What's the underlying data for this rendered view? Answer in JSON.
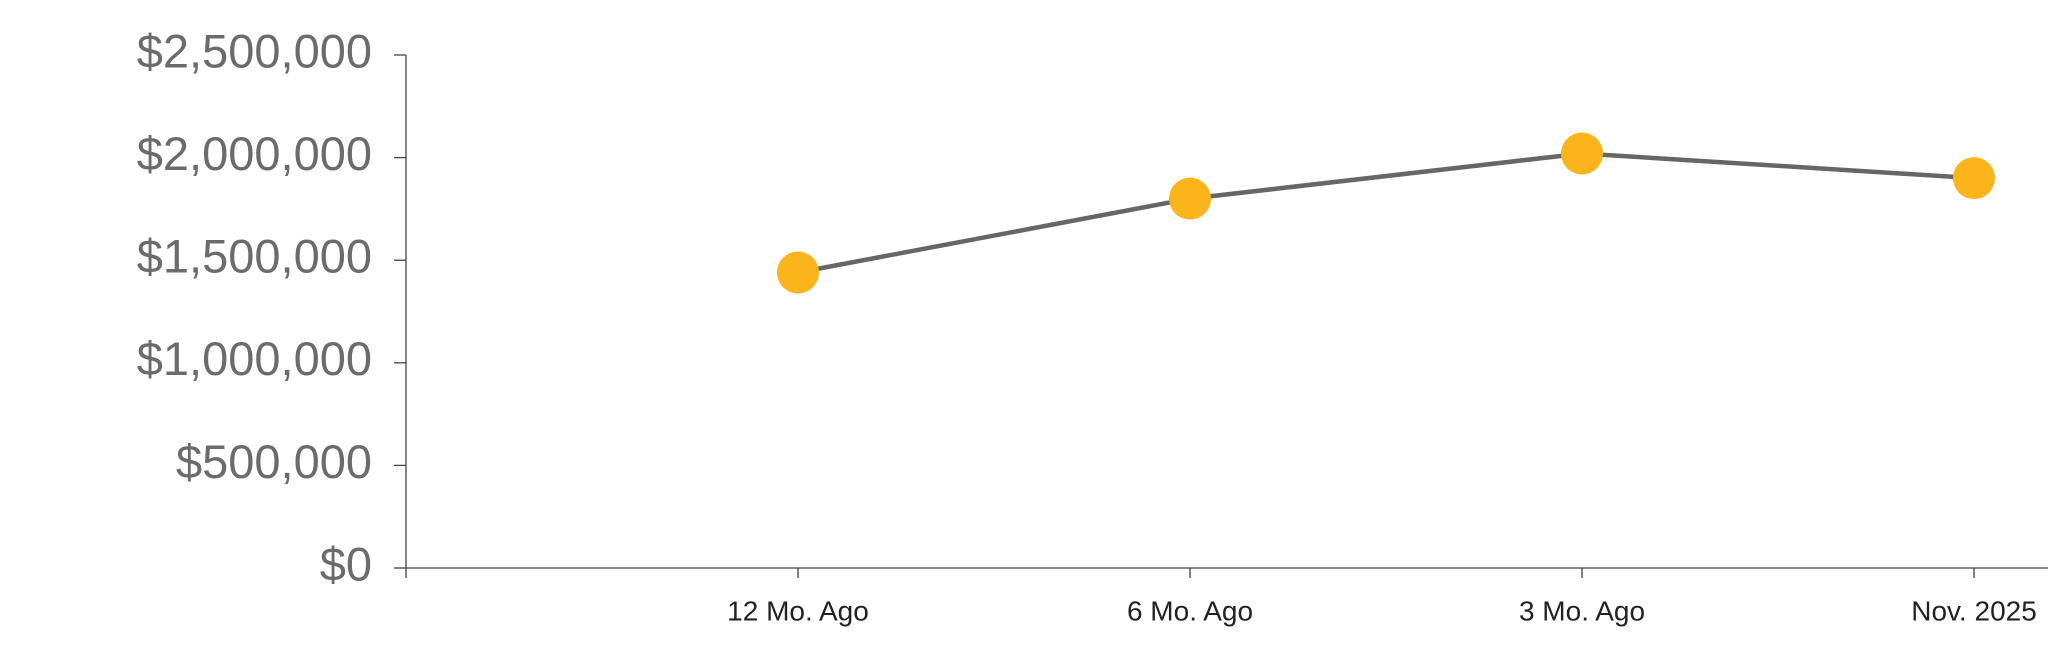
{
  "chart_data": {
    "type": "line",
    "categories": [
      null,
      "12 Mo. Ago",
      "6 Mo. Ago",
      "3 Mo. Ago",
      "Nov. 2025"
    ],
    "values": [
      null,
      1440000,
      1800000,
      2020000,
      1900000
    ],
    "line_color": "#666666",
    "marker_color": "#fbb41a",
    "ylim": [
      0,
      2500000
    ],
    "yticks": [
      {
        "value": 0,
        "label": "$0"
      },
      {
        "value": 500000,
        "label": "$500,000"
      },
      {
        "value": 1000000,
        "label": "$1,000,000"
      },
      {
        "value": 1500000,
        "label": "$1,500,000"
      },
      {
        "value": 2000000,
        "label": "$2,000,000"
      },
      {
        "value": 2500000,
        "label": "$2,500,000"
      }
    ],
    "grid": false
  }
}
